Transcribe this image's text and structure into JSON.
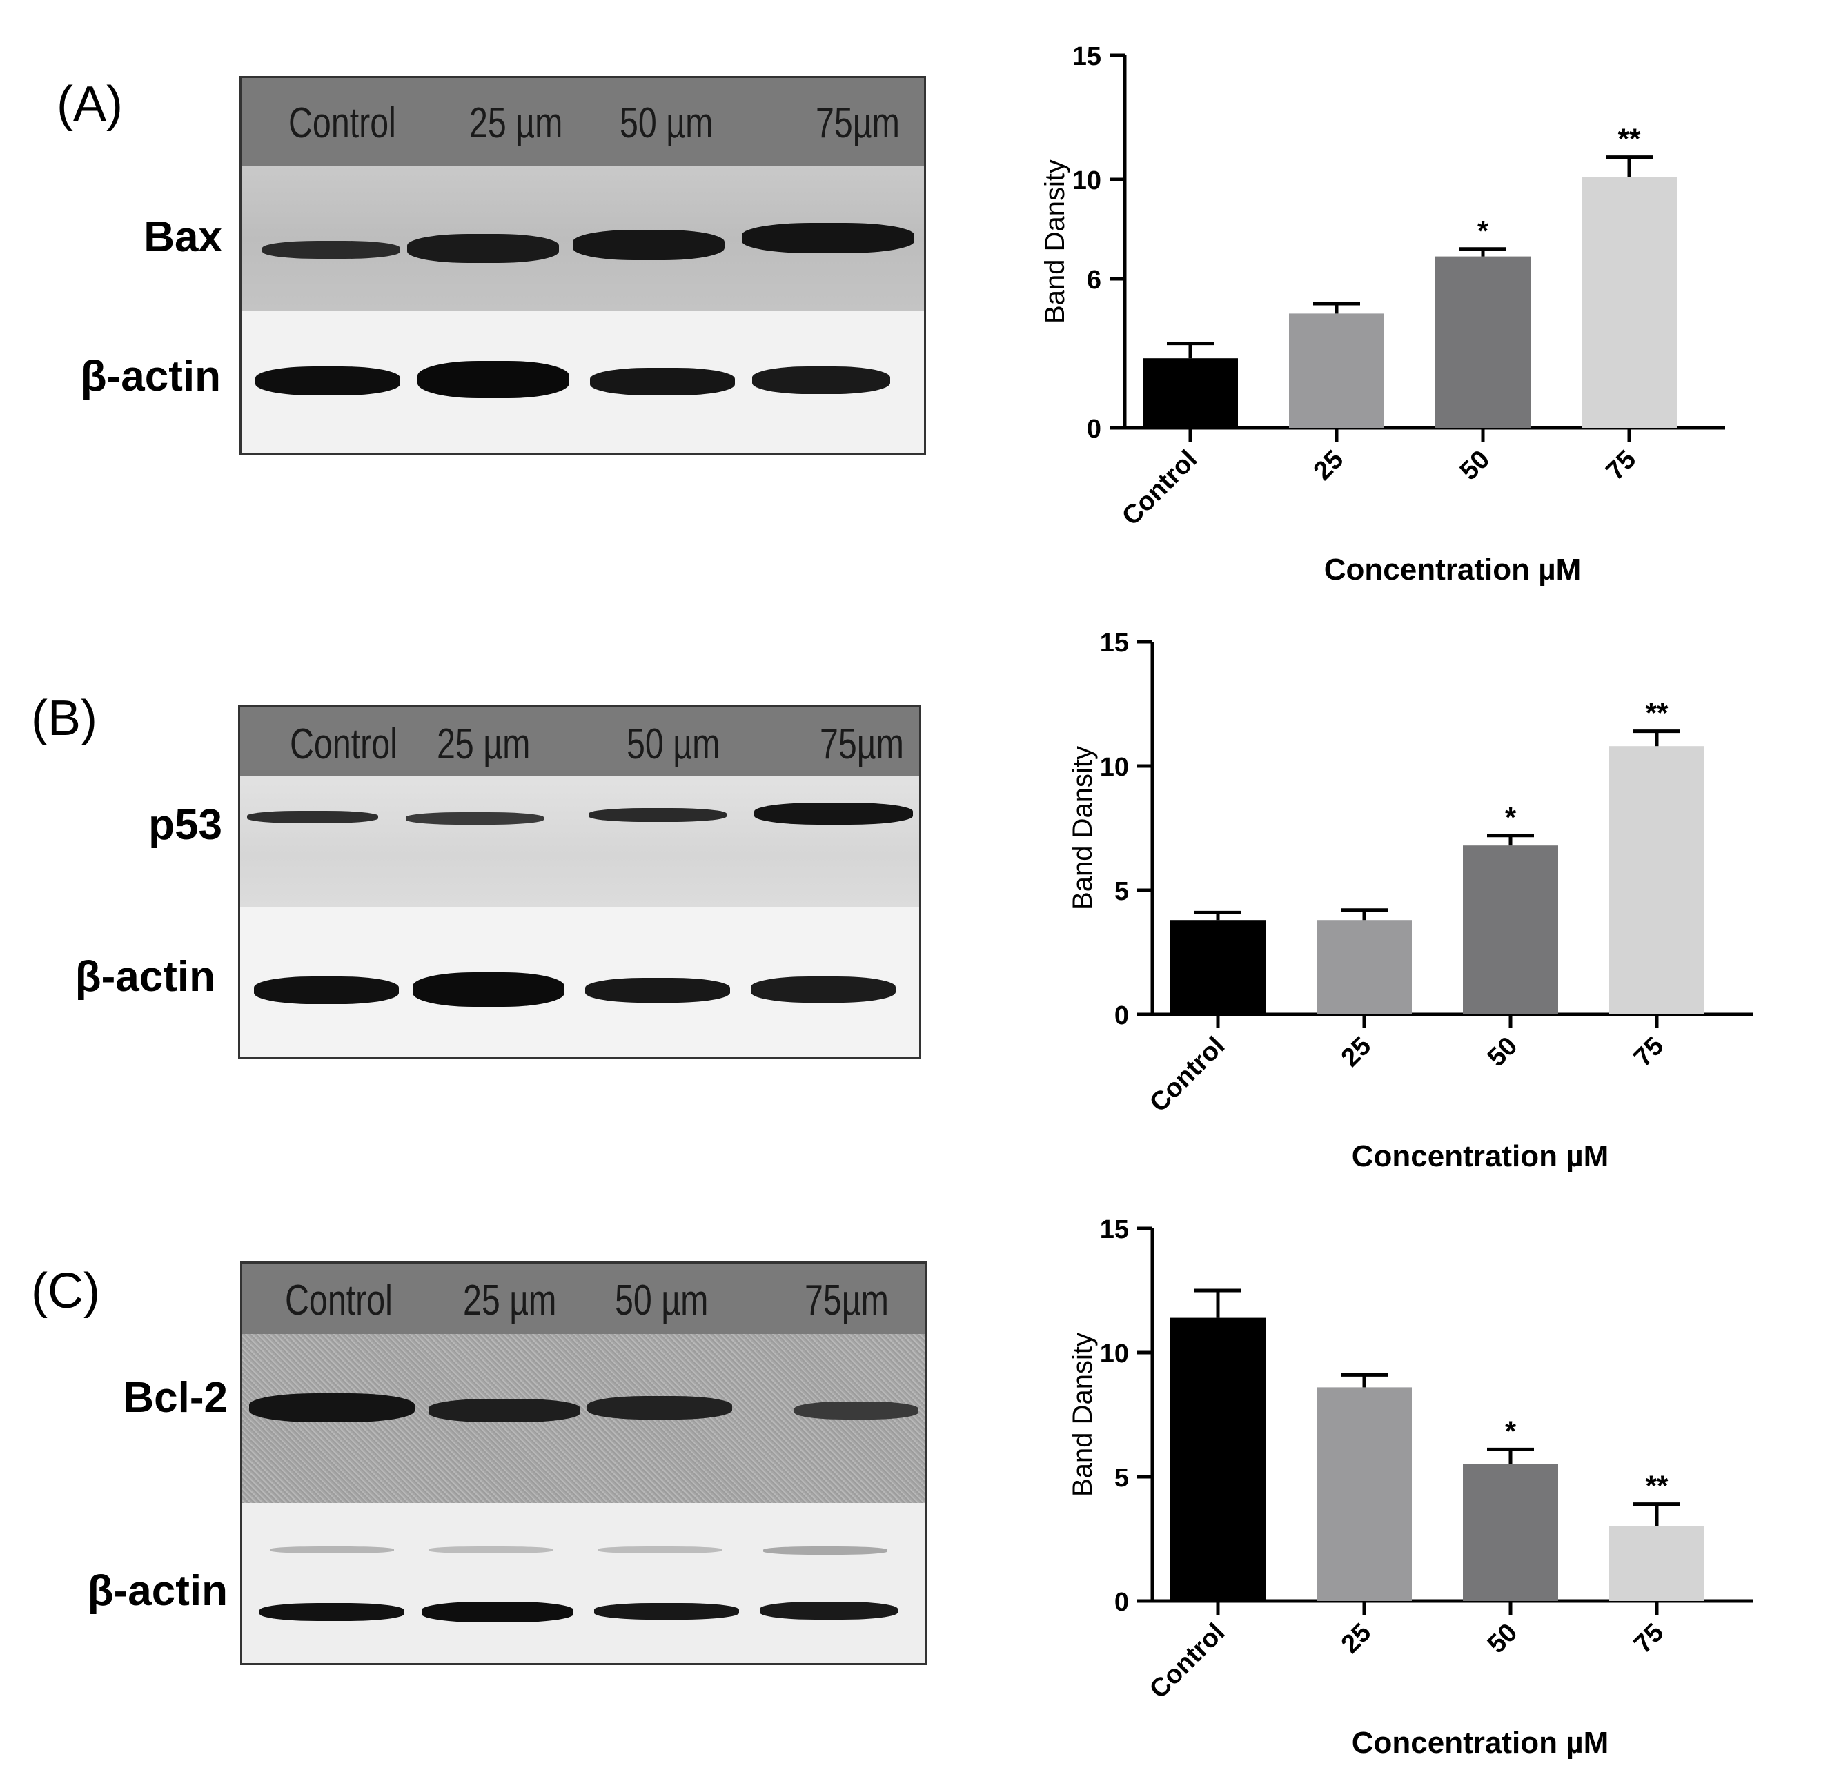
{
  "panels": [
    {
      "label": "(A)",
      "lanes": [
        "Control",
        "25 µm",
        "50 µm",
        "75µm"
      ],
      "rows": [
        "Bax",
        "β-actin"
      ]
    },
    {
      "label": "(B)",
      "lanes": [
        "Control",
        "25 µm",
        "50 µm",
        "75µm"
      ],
      "rows": [
        "p53",
        "β-actin"
      ]
    },
    {
      "label": "(C)",
      "lanes": [
        "Control",
        "25 µm",
        "50 µm",
        "75µm"
      ],
      "rows": [
        "Bcl-2",
        "β-actin"
      ]
    }
  ],
  "chart_data": [
    {
      "type": "bar",
      "categories": [
        "Control",
        "25",
        "50",
        "75"
      ],
      "values": [
        2.8,
        4.6,
        6.9,
        10.1
      ],
      "errors": [
        0.6,
        0.4,
        0.3,
        0.8
      ],
      "significance": [
        "",
        "",
        "*",
        "**"
      ],
      "colors": [
        "#000000",
        "#9a9a9c",
        "#767678",
        "#d4d4d4"
      ],
      "ylabel": "Band Dansity",
      "xlabel": "Concentration µM",
      "ylim": [
        0,
        15
      ],
      "yticks": [
        0,
        6,
        10,
        15
      ],
      "ytick_labels": [
        "0",
        "6",
        "10",
        "15"
      ],
      "grid": false
    },
    {
      "type": "bar",
      "categories": [
        "Control",
        "25",
        "50",
        "75"
      ],
      "values": [
        3.8,
        3.8,
        6.8,
        10.8
      ],
      "errors": [
        0.3,
        0.4,
        0.4,
        0.6
      ],
      "significance": [
        "",
        "",
        "*",
        "**"
      ],
      "colors": [
        "#000000",
        "#9a9a9c",
        "#767678",
        "#d4d4d4"
      ],
      "ylabel": "Band Dansity",
      "xlabel": "Concentration µM",
      "ylim": [
        0,
        15
      ],
      "yticks": [
        0,
        5,
        10,
        15
      ],
      "ytick_labels": [
        "0",
        "5",
        "10",
        "15"
      ],
      "grid": false
    },
    {
      "type": "bar",
      "categories": [
        "Control",
        "25",
        "50",
        "75"
      ],
      "values": [
        11.4,
        8.6,
        5.5,
        3.0
      ],
      "errors": [
        1.1,
        0.5,
        0.6,
        0.9
      ],
      "significance": [
        "",
        "",
        "*",
        "**"
      ],
      "colors": [
        "#000000",
        "#9a9a9c",
        "#767678",
        "#d4d4d4"
      ],
      "ylabel": "Band Dansity",
      "xlabel": "Concentration µM",
      "ylim": [
        0,
        15
      ],
      "yticks": [
        0,
        5,
        10,
        15
      ],
      "ytick_labels": [
        "0",
        "5",
        "10",
        "15"
      ],
      "grid": false
    }
  ]
}
